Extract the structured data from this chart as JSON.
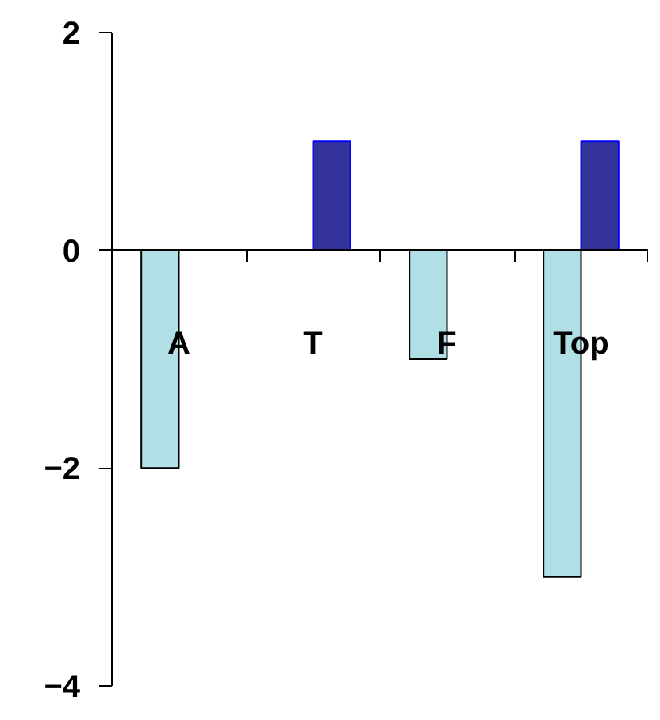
{
  "chart_data": {
    "type": "bar",
    "categories": [
      "A",
      "T",
      "F",
      "Top"
    ],
    "series": [
      {
        "color": "#b0e0e6",
        "values": [
          -2,
          null,
          -1,
          -3
        ]
      },
      {
        "color": "#333399",
        "values": [
          null,
          1,
          null,
          1
        ]
      }
    ],
    "ylim": [
      -4,
      2
    ],
    "yticks": [
      -4,
      -2,
      0,
      2
    ],
    "grid": false
  }
}
